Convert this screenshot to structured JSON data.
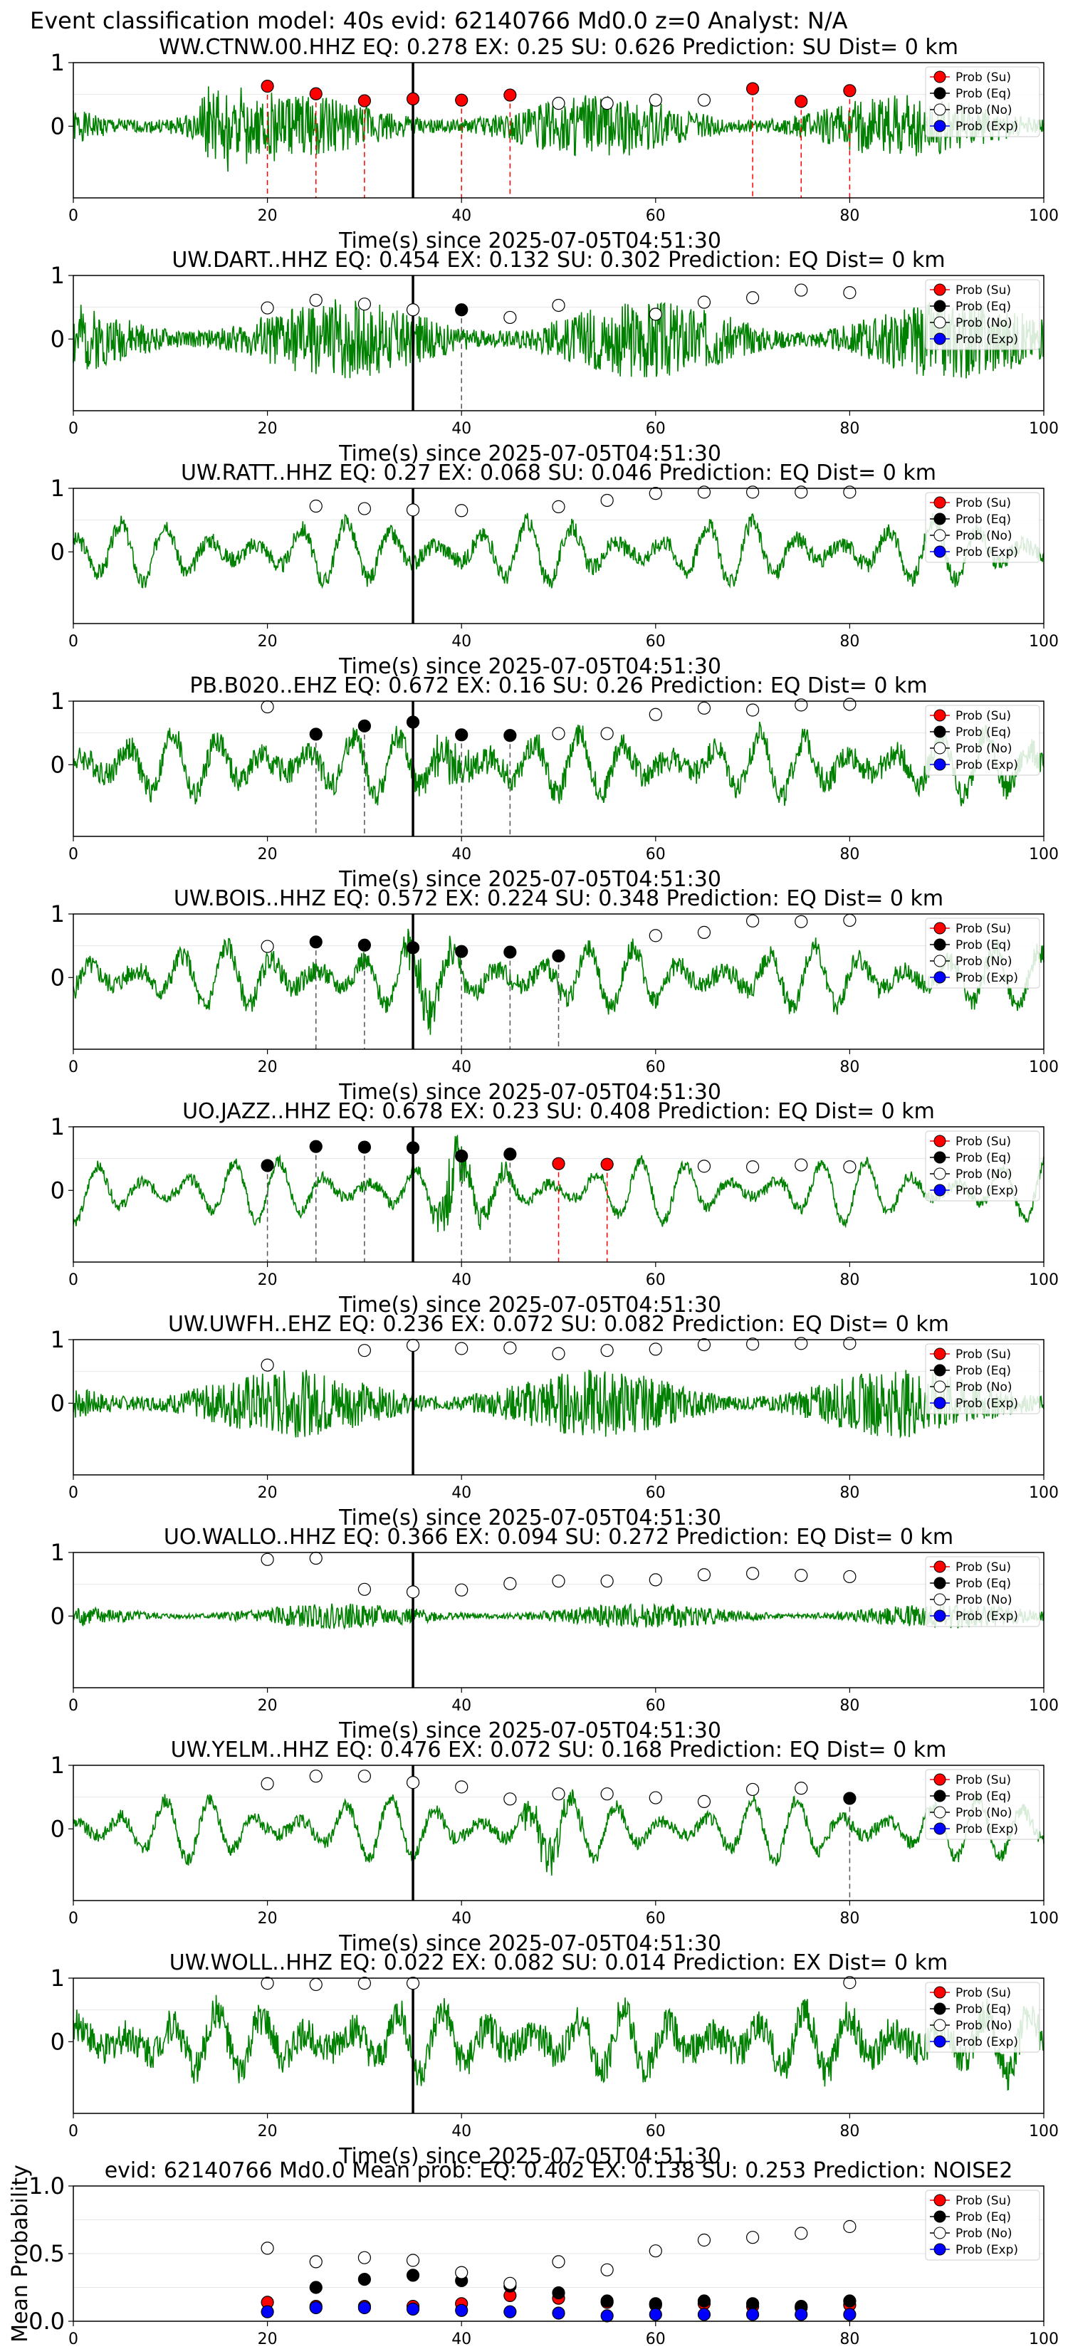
{
  "figure_title": "Event classification model: 40s evid: 62140766 Md0.0 z=0 Analyst: N/A",
  "legend_labels": [
    "Prob (Su)",
    "Prob (Eq)",
    "Prob (No)",
    "Prob (Exp)"
  ],
  "colors": {
    "trace": "#008000",
    "su": "#ff0000",
    "eq": "#000000",
    "no": "#ffffff",
    "exp": "#0000ff",
    "pick_line": "#000000",
    "su_vline": "#ff0000",
    "eq_vline": "#555555",
    "grid": "#e6e6e6"
  },
  "chart_data": [
    {
      "type": "line",
      "title": "WW.CTNW.00.HHZ   EQ: 0.278   EX: 0.25   SU: 0.626   Prediction: SU    Dist= 0 km",
      "xlabel": "Time(s) since 2025-07-05T04:51:30",
      "xlim": [
        0,
        100
      ],
      "ylim": [
        -1,
        1
      ],
      "xticks": [
        "0",
        "20",
        "40",
        "60",
        "80",
        "100"
      ],
      "yticks": [
        "1",
        "0"
      ],
      "pick_time": 35,
      "waveform": {
        "seed": 1,
        "style": "noisy",
        "noise_amp": 0.55,
        "burst_at": 15,
        "burst_amp": 0.85
      },
      "prob_points": [
        {
          "t": 20,
          "p": 0.63,
          "class": "su"
        },
        {
          "t": 25,
          "p": 0.51,
          "class": "su"
        },
        {
          "t": 30,
          "p": 0.4,
          "class": "su"
        },
        {
          "t": 35,
          "p": 0.43,
          "class": "su"
        },
        {
          "t": 40,
          "p": 0.41,
          "class": "su"
        },
        {
          "t": 45,
          "p": 0.49,
          "class": "su"
        },
        {
          "t": 50,
          "p": 0.36,
          "class": "no"
        },
        {
          "t": 55,
          "p": 0.36,
          "class": "no"
        },
        {
          "t": 60,
          "p": 0.41,
          "class": "no"
        },
        {
          "t": 65,
          "p": 0.41,
          "class": "no"
        },
        {
          "t": 70,
          "p": 0.59,
          "class": "su"
        },
        {
          "t": 75,
          "p": 0.39,
          "class": "su"
        },
        {
          "t": 80,
          "p": 0.56,
          "class": "su"
        }
      ]
    },
    {
      "type": "line",
      "title": "UW.DART..HHZ   EQ: 0.454  EX: 0.132  SU: 0.302   Prediction: EQ    Dist= 0 km",
      "xlabel": "Time(s) since 2025-07-05T04:51:30",
      "xlim": [
        0,
        100
      ],
      "ylim": [
        -1,
        1
      ],
      "xticks": [
        "0",
        "20",
        "40",
        "60",
        "80",
        "100"
      ],
      "yticks": [
        "1",
        "0"
      ],
      "pick_time": 35,
      "waveform": {
        "seed": 2,
        "style": "noisy",
        "noise_amp": 0.7,
        "burst_at": 0,
        "burst_amp": 0
      },
      "prob_points": [
        {
          "t": 20,
          "p": 0.49,
          "class": "no"
        },
        {
          "t": 25,
          "p": 0.61,
          "class": "no"
        },
        {
          "t": 30,
          "p": 0.55,
          "class": "no"
        },
        {
          "t": 35,
          "p": 0.46,
          "class": "no"
        },
        {
          "t": 40,
          "p": 0.46,
          "class": "eq"
        },
        {
          "t": 45,
          "p": 0.34,
          "class": "no"
        },
        {
          "t": 50,
          "p": 0.53,
          "class": "no"
        },
        {
          "t": 60,
          "p": 0.39,
          "class": "no"
        },
        {
          "t": 65,
          "p": 0.58,
          "class": "no"
        },
        {
          "t": 70,
          "p": 0.65,
          "class": "no"
        },
        {
          "t": 75,
          "p": 0.77,
          "class": "no"
        },
        {
          "t": 80,
          "p": 0.73,
          "class": "no"
        }
      ]
    },
    {
      "type": "line",
      "title": "UW.RATT..HHZ   EQ: 0.27  EX: 0.068  SU: 0.046   Prediction: EQ    Dist= 0 km",
      "xlabel": "Time(s) since 2025-07-05T04:51:30",
      "xlim": [
        0,
        100
      ],
      "ylim": [
        -1,
        1
      ],
      "xticks": [
        "0",
        "20",
        "40",
        "60",
        "80",
        "100"
      ],
      "yticks": [
        "1",
        "0"
      ],
      "pick_time": 35,
      "waveform": {
        "seed": 3,
        "style": "wavy",
        "noise_amp": 0.15,
        "burst_at": 0,
        "burst_amp": 0
      },
      "prob_points": [
        {
          "t": 25,
          "p": 0.72,
          "class": "no"
        },
        {
          "t": 30,
          "p": 0.68,
          "class": "no"
        },
        {
          "t": 35,
          "p": 0.66,
          "class": "no"
        },
        {
          "t": 40,
          "p": 0.65,
          "class": "no"
        },
        {
          "t": 50,
          "p": 0.71,
          "class": "no"
        },
        {
          "t": 55,
          "p": 0.81,
          "class": "no"
        },
        {
          "t": 60,
          "p": 0.92,
          "class": "no"
        },
        {
          "t": 65,
          "p": 0.94,
          "class": "no"
        },
        {
          "t": 70,
          "p": 0.94,
          "class": "no"
        },
        {
          "t": 75,
          "p": 0.94,
          "class": "no"
        },
        {
          "t": 80,
          "p": 0.94,
          "class": "no"
        }
      ]
    },
    {
      "type": "line",
      "title": "PB.B020..EHZ   EQ: 0.672  EX: 0.16  SU: 0.26   Prediction: EQ    Dist= 0 km",
      "xlabel": "Time(s) since 2025-07-05T04:51:30",
      "xlim": [
        0,
        100
      ],
      "ylim": [
        -1,
        1
      ],
      "xticks": [
        "0",
        "20",
        "40",
        "60",
        "80",
        "100"
      ],
      "yticks": [
        "1",
        "0"
      ],
      "pick_time": 35,
      "waveform": {
        "seed": 4,
        "style": "wavy",
        "noise_amp": 0.22,
        "burst_at": 39,
        "burst_amp": 0.35
      },
      "prob_points": [
        {
          "t": 20,
          "p": 0.91,
          "class": "no"
        },
        {
          "t": 25,
          "p": 0.48,
          "class": "eq"
        },
        {
          "t": 30,
          "p": 0.61,
          "class": "eq"
        },
        {
          "t": 35,
          "p": 0.67,
          "class": "eq"
        },
        {
          "t": 40,
          "p": 0.47,
          "class": "eq"
        },
        {
          "t": 45,
          "p": 0.46,
          "class": "eq"
        },
        {
          "t": 50,
          "p": 0.49,
          "class": "no"
        },
        {
          "t": 55,
          "p": 0.49,
          "class": "no"
        },
        {
          "t": 60,
          "p": 0.79,
          "class": "no"
        },
        {
          "t": 65,
          "p": 0.89,
          "class": "no"
        },
        {
          "t": 70,
          "p": 0.86,
          "class": "no"
        },
        {
          "t": 75,
          "p": 0.94,
          "class": "no"
        },
        {
          "t": 80,
          "p": 0.95,
          "class": "no"
        }
      ]
    },
    {
      "type": "line",
      "title": "UW.BOIS..HHZ   EQ: 0.572  EX: 0.224  SU: 0.348   Prediction: EQ    Dist= 0 km",
      "xlabel": "Time(s) since 2025-07-05T04:51:30",
      "xlim": [
        0,
        100
      ],
      "ylim": [
        -1,
        1
      ],
      "xticks": [
        "0",
        "20",
        "40",
        "60",
        "80",
        "100"
      ],
      "yticks": [
        "1",
        "0"
      ],
      "pick_time": 35,
      "waveform": {
        "seed": 5,
        "style": "wavy",
        "noise_amp": 0.18,
        "burst_at": 36,
        "burst_amp": 0.5
      },
      "prob_points": [
        {
          "t": 20,
          "p": 0.49,
          "class": "no"
        },
        {
          "t": 25,
          "p": 0.56,
          "class": "eq"
        },
        {
          "t": 30,
          "p": 0.51,
          "class": "eq"
        },
        {
          "t": 35,
          "p": 0.47,
          "class": "eq"
        },
        {
          "t": 40,
          "p": 0.41,
          "class": "eq"
        },
        {
          "t": 45,
          "p": 0.4,
          "class": "eq"
        },
        {
          "t": 50,
          "p": 0.34,
          "class": "eq"
        },
        {
          "t": 60,
          "p": 0.66,
          "class": "no"
        },
        {
          "t": 65,
          "p": 0.71,
          "class": "no"
        },
        {
          "t": 70,
          "p": 0.89,
          "class": "no"
        },
        {
          "t": 75,
          "p": 0.88,
          "class": "no"
        },
        {
          "t": 80,
          "p": 0.9,
          "class": "no"
        }
      ]
    },
    {
      "type": "line",
      "title": "UO.JAZZ..HHZ   EQ: 0.678  EX: 0.23  SU: 0.408   Prediction: EQ    Dist= 0 km",
      "xlabel": "Time(s) since 2025-07-05T04:51:30",
      "xlim": [
        0,
        100
      ],
      "ylim": [
        -1,
        1
      ],
      "xticks": [
        "0",
        "20",
        "40",
        "60",
        "80",
        "100"
      ],
      "yticks": [
        "1",
        "0"
      ],
      "pick_time": 35,
      "waveform": {
        "seed": 6,
        "style": "wavy",
        "noise_amp": 0.1,
        "burst_at": 39,
        "burst_amp": 0.6
      },
      "prob_points": [
        {
          "t": 20,
          "p": 0.39,
          "class": "eq"
        },
        {
          "t": 25,
          "p": 0.69,
          "class": "eq"
        },
        {
          "t": 30,
          "p": 0.68,
          "class": "eq"
        },
        {
          "t": 35,
          "p": 0.67,
          "class": "eq"
        },
        {
          "t": 40,
          "p": 0.54,
          "class": "eq"
        },
        {
          "t": 45,
          "p": 0.57,
          "class": "eq"
        },
        {
          "t": 50,
          "p": 0.42,
          "class": "su"
        },
        {
          "t": 55,
          "p": 0.41,
          "class": "su"
        },
        {
          "t": 65,
          "p": 0.38,
          "class": "no"
        },
        {
          "t": 70,
          "p": 0.37,
          "class": "no"
        },
        {
          "t": 75,
          "p": 0.4,
          "class": "no"
        },
        {
          "t": 80,
          "p": 0.37,
          "class": "no"
        }
      ]
    },
    {
      "type": "line",
      "title": "UW.UWFH..EHZ   EQ: 0.236  EX: 0.072  SU: 0.082   Prediction: EQ    Dist= 0 km",
      "xlabel": "Time(s) since 2025-07-05T04:51:30",
      "xlim": [
        0,
        100
      ],
      "ylim": [
        -1,
        1
      ],
      "xticks": [
        "0",
        "20",
        "40",
        "60",
        "80",
        "100"
      ],
      "yticks": [
        "1",
        "0"
      ],
      "pick_time": 35,
      "waveform": {
        "seed": 7,
        "style": "noisy",
        "noise_amp": 0.6,
        "burst_at": 0,
        "burst_amp": 0
      },
      "prob_points": [
        {
          "t": 20,
          "p": 0.6,
          "class": "no"
        },
        {
          "t": 30,
          "p": 0.83,
          "class": "no"
        },
        {
          "t": 35,
          "p": 0.91,
          "class": "no"
        },
        {
          "t": 40,
          "p": 0.86,
          "class": "no"
        },
        {
          "t": 45,
          "p": 0.87,
          "class": "no"
        },
        {
          "t": 50,
          "p": 0.78,
          "class": "no"
        },
        {
          "t": 55,
          "p": 0.83,
          "class": "no"
        },
        {
          "t": 60,
          "p": 0.85,
          "class": "no"
        },
        {
          "t": 65,
          "p": 0.92,
          "class": "no"
        },
        {
          "t": 70,
          "p": 0.93,
          "class": "no"
        },
        {
          "t": 75,
          "p": 0.94,
          "class": "no"
        },
        {
          "t": 80,
          "p": 0.94,
          "class": "no"
        }
      ]
    },
    {
      "type": "line",
      "title": "UO.WALLO..HHZ   EQ: 0.366  EX: 0.094  SU: 0.272   Prediction: EQ    Dist= 0 km",
      "xlabel": "Time(s) since 2025-07-05T04:51:30",
      "xlim": [
        0,
        100
      ],
      "ylim": [
        -1,
        1
      ],
      "xticks": [
        "0",
        "20",
        "40",
        "60",
        "80",
        "100"
      ],
      "yticks": [
        "1",
        "0"
      ],
      "pick_time": 35,
      "waveform": {
        "seed": 8,
        "style": "noisy",
        "noise_amp": 0.22,
        "burst_at": 0,
        "burst_amp": 0
      },
      "prob_points": [
        {
          "t": 20,
          "p": 0.89,
          "class": "no"
        },
        {
          "t": 25,
          "p": 0.91,
          "class": "no"
        },
        {
          "t": 30,
          "p": 0.42,
          "class": "no"
        },
        {
          "t": 35,
          "p": 0.38,
          "class": "no"
        },
        {
          "t": 40,
          "p": 0.41,
          "class": "no"
        },
        {
          "t": 45,
          "p": 0.51,
          "class": "no"
        },
        {
          "t": 50,
          "p": 0.55,
          "class": "no"
        },
        {
          "t": 55,
          "p": 0.55,
          "class": "no"
        },
        {
          "t": 60,
          "p": 0.57,
          "class": "no"
        },
        {
          "t": 65,
          "p": 0.65,
          "class": "no"
        },
        {
          "t": 70,
          "p": 0.67,
          "class": "no"
        },
        {
          "t": 75,
          "p": 0.64,
          "class": "no"
        },
        {
          "t": 80,
          "p": 0.62,
          "class": "no"
        }
      ]
    },
    {
      "type": "line",
      "title": "UW.YELM..HHZ   EQ: 0.476  EX: 0.072  SU: 0.168   Prediction: EQ    Dist= 0 km",
      "xlabel": "Time(s) since 2025-07-05T04:51:30",
      "xlim": [
        0,
        100
      ],
      "ylim": [
        -1,
        1
      ],
      "xticks": [
        "0",
        "20",
        "40",
        "60",
        "80",
        "100"
      ],
      "yticks": [
        "1",
        "0"
      ],
      "pick_time": 35,
      "waveform": {
        "seed": 9,
        "style": "wavy",
        "noise_amp": 0.12,
        "burst_at": 48,
        "burst_amp": 0.45
      },
      "prob_points": [
        {
          "t": 20,
          "p": 0.71,
          "class": "no"
        },
        {
          "t": 25,
          "p": 0.83,
          "class": "no"
        },
        {
          "t": 30,
          "p": 0.83,
          "class": "no"
        },
        {
          "t": 35,
          "p": 0.73,
          "class": "no"
        },
        {
          "t": 40,
          "p": 0.66,
          "class": "no"
        },
        {
          "t": 45,
          "p": 0.47,
          "class": "no"
        },
        {
          "t": 50,
          "p": 0.55,
          "class": "no"
        },
        {
          "t": 55,
          "p": 0.55,
          "class": "no"
        },
        {
          "t": 60,
          "p": 0.49,
          "class": "no"
        },
        {
          "t": 65,
          "p": 0.43,
          "class": "no"
        },
        {
          "t": 70,
          "p": 0.62,
          "class": "no"
        },
        {
          "t": 75,
          "p": 0.64,
          "class": "no"
        },
        {
          "t": 80,
          "p": 0.48,
          "class": "eq"
        }
      ]
    },
    {
      "type": "line",
      "title": "UW.WOLL..HHZ   EQ: 0.022  EX: 0.082  SU: 0.014   Prediction: EX    Dist= 0 km",
      "xlabel": "Time(s) since 2025-07-05T04:51:30",
      "xlim": [
        0,
        100
      ],
      "ylim": [
        -1,
        1
      ],
      "xticks": [
        "0",
        "20",
        "40",
        "60",
        "80",
        "100"
      ],
      "yticks": [
        "1",
        "0"
      ],
      "pick_time": 35,
      "waveform": {
        "seed": 10,
        "style": "wavy",
        "noise_amp": 0.3,
        "burst_at": 0,
        "burst_amp": 0
      },
      "prob_points": [
        {
          "t": 20,
          "p": 0.92,
          "class": "no"
        },
        {
          "t": 25,
          "p": 0.9,
          "class": "no"
        },
        {
          "t": 30,
          "p": 0.92,
          "class": "no"
        },
        {
          "t": 35,
          "p": 0.92,
          "class": "no"
        },
        {
          "t": 80,
          "p": 0.93,
          "class": "no"
        }
      ]
    },
    {
      "type": "scatter",
      "title": "evid: 62140766  Md0.0   Mean prob:   EQ: 0.402  EX: 0.138  SU: 0.253   Prediction: NOISE2",
      "xlabel": "",
      "ylabel": "Mean Probability",
      "xlim": [
        0,
        100
      ],
      "ylim": [
        0,
        1
      ],
      "xticks": [
        "0",
        "20",
        "40",
        "60",
        "80",
        "100"
      ],
      "yticks": [
        "0.0",
        "0.5",
        "1.0"
      ],
      "series": [
        {
          "name": "Prob (Su)",
          "class": "su",
          "x": [
            20,
            25,
            30,
            35,
            40,
            45,
            50,
            55,
            60,
            65,
            70,
            75,
            80
          ],
          "y": [
            0.14,
            0.11,
            0.11,
            0.11,
            0.13,
            0.19,
            0.17,
            0.14,
            0.12,
            0.13,
            0.11,
            0.1,
            0.12
          ]
        },
        {
          "name": "Prob (Eq)",
          "class": "eq",
          "x": [
            25,
            30,
            35,
            40,
            45,
            50,
            55,
            60,
            65,
            70,
            75,
            80
          ],
          "y": [
            0.25,
            0.31,
            0.34,
            0.3,
            0.26,
            0.21,
            0.15,
            0.13,
            0.15,
            0.13,
            0.11,
            0.15
          ]
        },
        {
          "name": "Prob (No)",
          "class": "no",
          "x": [
            20,
            25,
            30,
            35,
            40,
            45,
            50,
            55,
            60,
            65,
            70,
            75,
            80
          ],
          "y": [
            0.54,
            0.44,
            0.47,
            0.45,
            0.36,
            0.28,
            0.44,
            0.38,
            0.52,
            0.6,
            0.62,
            0.65,
            0.7
          ]
        },
        {
          "name": "Prob (Exp)",
          "class": "exp",
          "x": [
            20,
            25,
            30,
            35,
            40,
            45,
            50,
            55,
            60,
            65,
            70,
            75,
            80
          ],
          "y": [
            0.07,
            0.1,
            0.1,
            0.09,
            0.08,
            0.07,
            0.06,
            0.04,
            0.05,
            0.05,
            0.05,
            0.05,
            0.05
          ]
        }
      ]
    }
  ]
}
